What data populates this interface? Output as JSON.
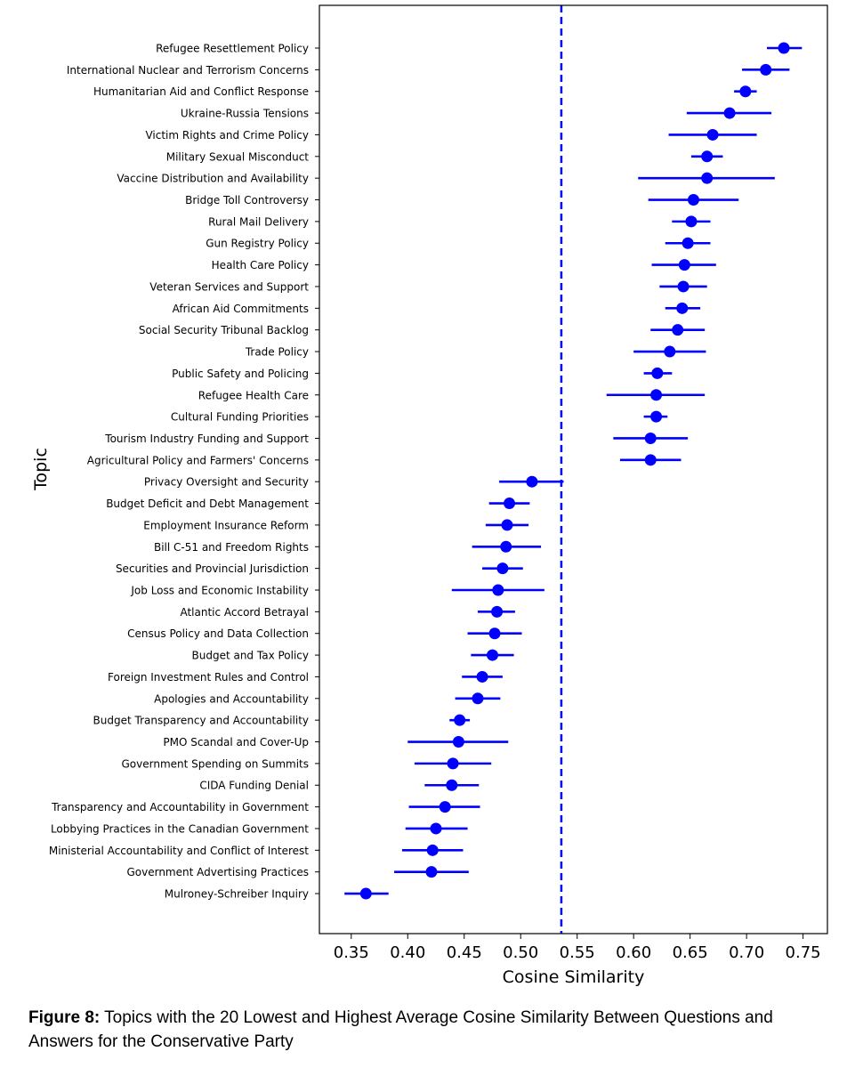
{
  "chart_data": {
    "type": "scatter",
    "subtype": "point-with-error-bars",
    "xlabel": "Cosine Similarity",
    "ylabel": "Topic",
    "xlim": [
      0.33,
      0.775
    ],
    "xticks": [
      "0.35",
      "0.40",
      "0.45",
      "0.50",
      "0.55",
      "0.60",
      "0.65",
      "0.70",
      "0.75"
    ],
    "reference_line": {
      "x": 0.536,
      "style": "dashed",
      "color": "#0000ff"
    },
    "marker_color": "#0000ff",
    "grid": false,
    "points": [
      {
        "topic": "Refugee Resettlement Policy",
        "value": 0.733,
        "low": 0.718,
        "high": 0.749
      },
      {
        "topic": "International Nuclear and Terrorism Concerns",
        "value": 0.717,
        "low": 0.696,
        "high": 0.738
      },
      {
        "topic": "Humanitarian Aid and Conflict Response",
        "value": 0.699,
        "low": 0.689,
        "high": 0.709
      },
      {
        "topic": "Ukraine-Russia Tensions",
        "value": 0.685,
        "low": 0.647,
        "high": 0.722
      },
      {
        "topic": "Victim Rights and Crime Policy",
        "value": 0.67,
        "low": 0.631,
        "high": 0.709
      },
      {
        "topic": "Military Sexual Misconduct",
        "value": 0.665,
        "low": 0.651,
        "high": 0.679
      },
      {
        "topic": "Vaccine Distribution and Availability",
        "value": 0.665,
        "low": 0.604,
        "high": 0.725
      },
      {
        "topic": "Bridge Toll Controversy",
        "value": 0.653,
        "low": 0.613,
        "high": 0.693
      },
      {
        "topic": "Rural Mail Delivery",
        "value": 0.651,
        "low": 0.634,
        "high": 0.668
      },
      {
        "topic": "Gun Registry Policy",
        "value": 0.648,
        "low": 0.628,
        "high": 0.668
      },
      {
        "topic": "Health Care Policy",
        "value": 0.645,
        "low": 0.616,
        "high": 0.673
      },
      {
        "topic": "Veteran Services and Support",
        "value": 0.644,
        "low": 0.623,
        "high": 0.665
      },
      {
        "topic": "African Aid Commitments",
        "value": 0.643,
        "low": 0.628,
        "high": 0.659
      },
      {
        "topic": "Social Security Tribunal Backlog",
        "value": 0.639,
        "low": 0.615,
        "high": 0.663
      },
      {
        "topic": "Trade Policy",
        "value": 0.632,
        "low": 0.6,
        "high": 0.664
      },
      {
        "topic": "Public Safety and Policing",
        "value": 0.621,
        "low": 0.609,
        "high": 0.634
      },
      {
        "topic": "Refugee Health Care",
        "value": 0.62,
        "low": 0.576,
        "high": 0.663
      },
      {
        "topic": "Cultural Funding Priorities",
        "value": 0.62,
        "low": 0.609,
        "high": 0.63
      },
      {
        "topic": "Tourism Industry Funding and Support",
        "value": 0.615,
        "low": 0.582,
        "high": 0.648
      },
      {
        "topic": "Agricultural Policy and Farmers' Concerns",
        "value": 0.615,
        "low": 0.588,
        "high": 0.642
      },
      {
        "topic": "Privacy Oversight and Security",
        "value": 0.51,
        "low": 0.481,
        "high": 0.538
      },
      {
        "topic": "Budget Deficit and Debt Management",
        "value": 0.49,
        "low": 0.472,
        "high": 0.508
      },
      {
        "topic": "Employment Insurance Reform",
        "value": 0.488,
        "low": 0.469,
        "high": 0.507
      },
      {
        "topic": "Bill C-51 and Freedom Rights",
        "value": 0.487,
        "low": 0.457,
        "high": 0.518
      },
      {
        "topic": "Securities and Provincial Jurisdiction",
        "value": 0.484,
        "low": 0.466,
        "high": 0.502
      },
      {
        "topic": "Job Loss and Economic Instability",
        "value": 0.48,
        "low": 0.439,
        "high": 0.521
      },
      {
        "topic": "Atlantic Accord Betrayal",
        "value": 0.479,
        "low": 0.462,
        "high": 0.495
      },
      {
        "topic": "Census Policy and Data Collection",
        "value": 0.477,
        "low": 0.453,
        "high": 0.501
      },
      {
        "topic": "Budget and Tax Policy",
        "value": 0.475,
        "low": 0.456,
        "high": 0.494
      },
      {
        "topic": "Foreign Investment Rules and Control",
        "value": 0.466,
        "low": 0.448,
        "high": 0.484
      },
      {
        "topic": "Apologies and Accountability",
        "value": 0.462,
        "low": 0.442,
        "high": 0.482
      },
      {
        "topic": "Budget Transparency and Accountability",
        "value": 0.446,
        "low": 0.437,
        "high": 0.455
      },
      {
        "topic": "PMO Scandal and Cover-Up",
        "value": 0.445,
        "low": 0.4,
        "high": 0.489
      },
      {
        "topic": "Government Spending on Summits",
        "value": 0.44,
        "low": 0.406,
        "high": 0.474
      },
      {
        "topic": "CIDA Funding Denial",
        "value": 0.439,
        "low": 0.415,
        "high": 0.463
      },
      {
        "topic": "Transparency and Accountability in Government",
        "value": 0.433,
        "low": 0.401,
        "high": 0.464
      },
      {
        "topic": "Lobbying Practices in the Canadian Government",
        "value": 0.425,
        "low": 0.398,
        "high": 0.453
      },
      {
        "topic": "Ministerial Accountability and Conflict of Interest",
        "value": 0.422,
        "low": 0.395,
        "high": 0.449
      },
      {
        "topic": "Government Advertising Practices",
        "value": 0.421,
        "low": 0.388,
        "high": 0.454
      },
      {
        "topic": "Mulroney-Schreiber Inquiry",
        "value": 0.363,
        "low": 0.344,
        "high": 0.383
      }
    ]
  },
  "caption": {
    "label": "Figure 8:",
    "text": " Topics with the 20 Lowest and Highest Average Cosine Similarity Between Questions and Answers for the Conservative Party"
  }
}
